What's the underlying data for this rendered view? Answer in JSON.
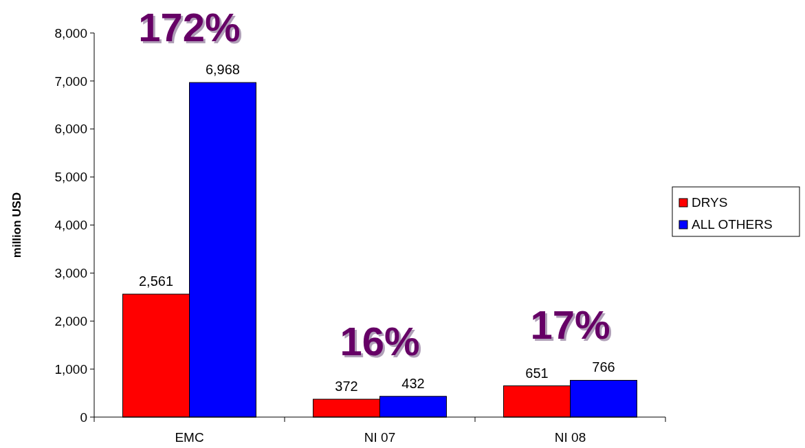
{
  "chart_data": {
    "type": "bar",
    "ylabel": "million USD",
    "categories": [
      "EMC",
      "NI 07",
      "NI 08"
    ],
    "series": [
      {
        "name": "DRYS",
        "color": "#ff0000",
        "values": [
          2561,
          372,
          651
        ],
        "value_labels": [
          "2,561",
          "372",
          "651"
        ]
      },
      {
        "name": "ALL OTHERS",
        "color": "#0000ff",
        "values": [
          6968,
          432,
          766
        ],
        "value_labels": [
          "6,968",
          "432",
          "766"
        ]
      }
    ],
    "ylim": [
      0,
      8000
    ],
    "yticks": [
      0,
      {
        "value": 1000,
        "label": "1,000"
      },
      {
        "value": 2000,
        "label": "2,000"
      },
      {
        "value": 3000,
        "label": "3,000"
      },
      {
        "value": 4000,
        "label": "4,000"
      },
      {
        "value": 5000,
        "label": "5,000"
      },
      {
        "value": 6000,
        "label": "6,000"
      },
      {
        "value": 7000,
        "label": "7,000"
      },
      {
        "value": 8000,
        "label": "8,000"
      }
    ],
    "legend": "right",
    "grid": false,
    "annotations": [
      "172%",
      "16%",
      "17%"
    ]
  }
}
